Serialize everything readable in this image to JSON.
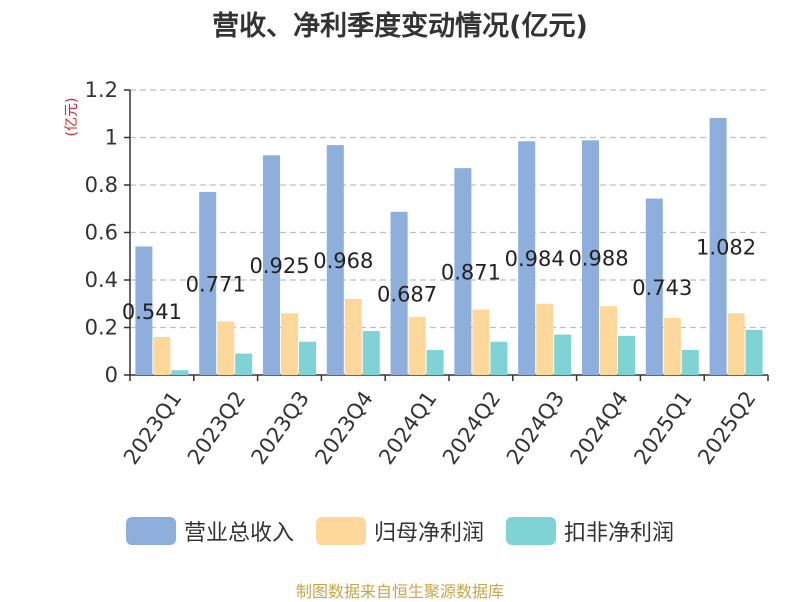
{
  "title": "营收、净利季度变动情况(亿元)",
  "source": "制图数据来自恒生聚源数据库",
  "colors": {
    "revenue": "#8eaedc",
    "net_profit": "#fed89a",
    "deducted_profit": "#7fd3d4",
    "ylabel": "#e0222a"
  },
  "chart_data": {
    "type": "bar",
    "title": "营收、净利季度变动情况(亿元)",
    "ylabel": "(亿元)",
    "ylim": [
      0,
      1.2
    ],
    "yticks": [
      "0",
      "0.2",
      "0.4",
      "0.6",
      "0.8",
      "1",
      "1.2"
    ],
    "grid": true,
    "legend_position": "bottom",
    "categories": [
      "2023Q1",
      "2023Q2",
      "2023Q3",
      "2023Q4",
      "2024Q1",
      "2024Q2",
      "2024Q3",
      "2024Q4",
      "2025Q1",
      "2025Q2"
    ],
    "series": [
      {
        "name": "营业总收入",
        "values": [
          0.541,
          0.771,
          0.925,
          0.968,
          0.687,
          0.871,
          0.984,
          0.988,
          0.743,
          1.082
        ],
        "data_labels": [
          "0.541",
          "0.771",
          "0.925",
          "0.968",
          "0.687",
          "0.871",
          "0.984",
          "0.988",
          "0.743",
          "1.082"
        ]
      },
      {
        "name": "归母净利润",
        "values": [
          0.16,
          0.225,
          0.26,
          0.32,
          0.245,
          0.275,
          0.3,
          0.29,
          0.24,
          0.26
        ]
      },
      {
        "name": "扣非净利润",
        "values": [
          0.02,
          0.09,
          0.14,
          0.185,
          0.105,
          0.14,
          0.17,
          0.165,
          0.105,
          0.19
        ]
      }
    ]
  }
}
